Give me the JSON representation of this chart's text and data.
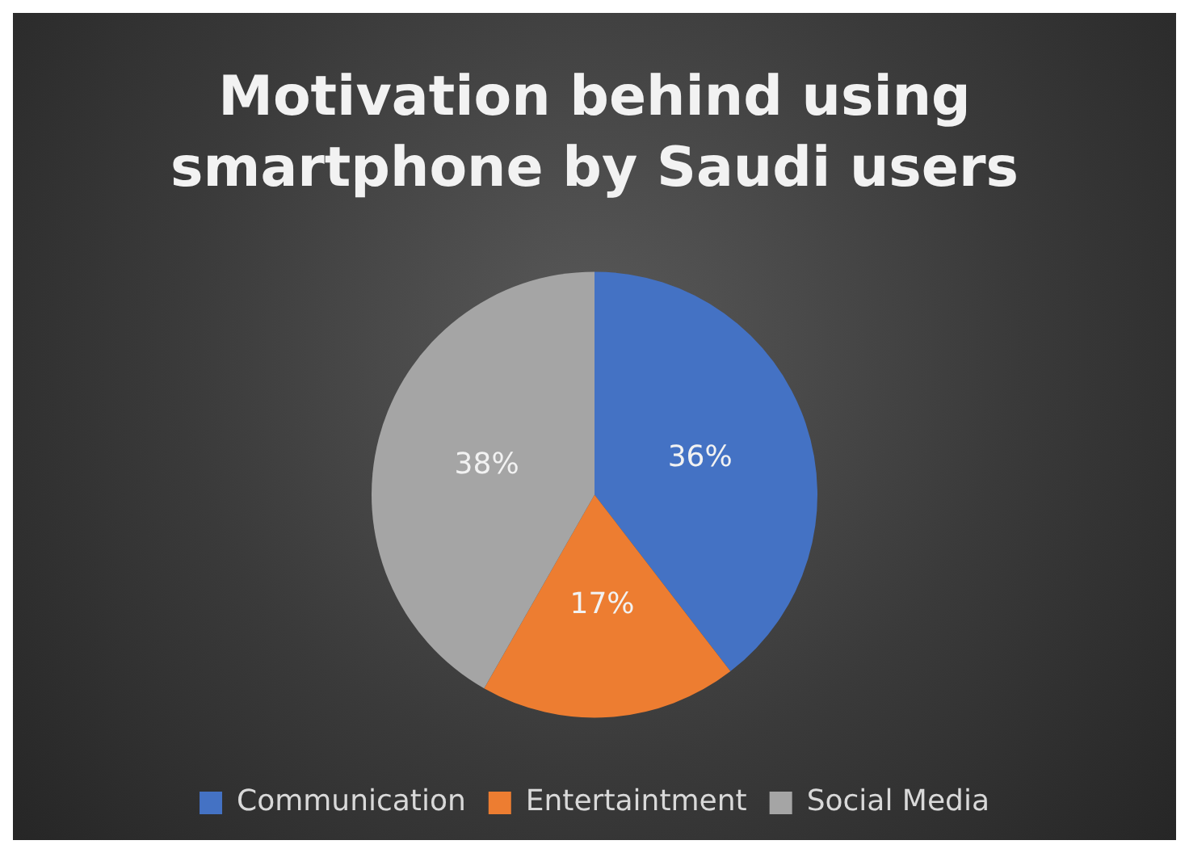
{
  "chart_data": {
    "type": "pie",
    "title": "Motivation behind using smartphone by Saudi users",
    "categories": [
      "Communication",
      "Entertaintment",
      "Social Media"
    ],
    "values": [
      36,
      17,
      38
    ],
    "value_labels": [
      "36%",
      "17%",
      "38%"
    ],
    "colors": [
      "#4472c4",
      "#ed7d31",
      "#a5a5a5"
    ],
    "legend": "bottom"
  }
}
